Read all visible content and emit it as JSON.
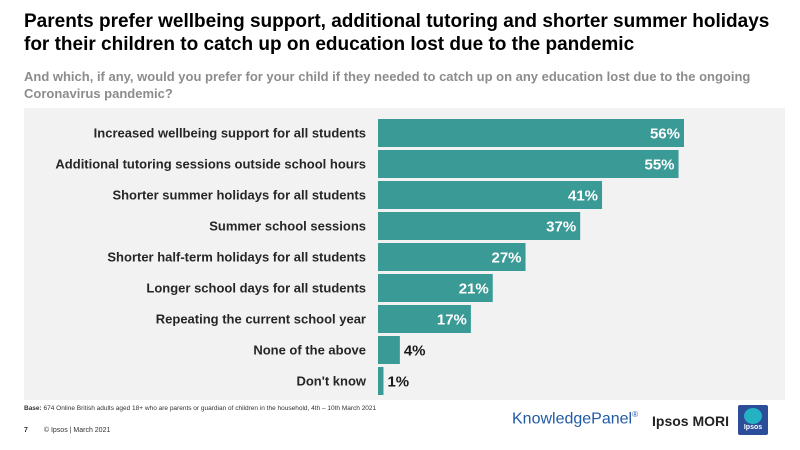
{
  "header": {
    "title": "Parents prefer wellbeing support, additional tutoring and shorter summer holidays for their children to catch up on education lost due to the pandemic",
    "subtitle": "And which, if any, would you prefer for your child if they needed to catch up on any education lost due to the ongoing Coronavirus pandemic?"
  },
  "chart_data": {
    "type": "bar",
    "orientation": "horizontal",
    "categories": [
      "Increased wellbeing support for all students",
      "Additional tutoring sessions outside school hours",
      "Shorter summer holidays for all students",
      "Summer school sessions",
      "Shorter half-term holidays for all students",
      "Longer school days for all students",
      "Repeating the current school year",
      "None of the above",
      "Don't know"
    ],
    "values": [
      56,
      55,
      41,
      37,
      27,
      21,
      17,
      4,
      1
    ],
    "value_labels": [
      "56%",
      "55%",
      "41%",
      "37%",
      "27%",
      "21%",
      "17%",
      "4%",
      "1%"
    ],
    "unit": "%",
    "xlim": [
      0,
      56
    ],
    "bar_color": "#3a9a96",
    "background_color": "#f2f2f2",
    "grid": false,
    "legend": "none"
  },
  "footer": {
    "base_label": "Base:",
    "base_text": "674 Online British adults aged 18+ who are parents or guardian of children in the household, 4th – 10th March 2021",
    "page_number": "7",
    "copyright": "© Ipsos | March 2021",
    "knowledge_panel": "KnowledgePanel",
    "registered_mark": "®",
    "ipsos_mori": "Ipsos MORI",
    "logo_text": "Ipsos"
  }
}
